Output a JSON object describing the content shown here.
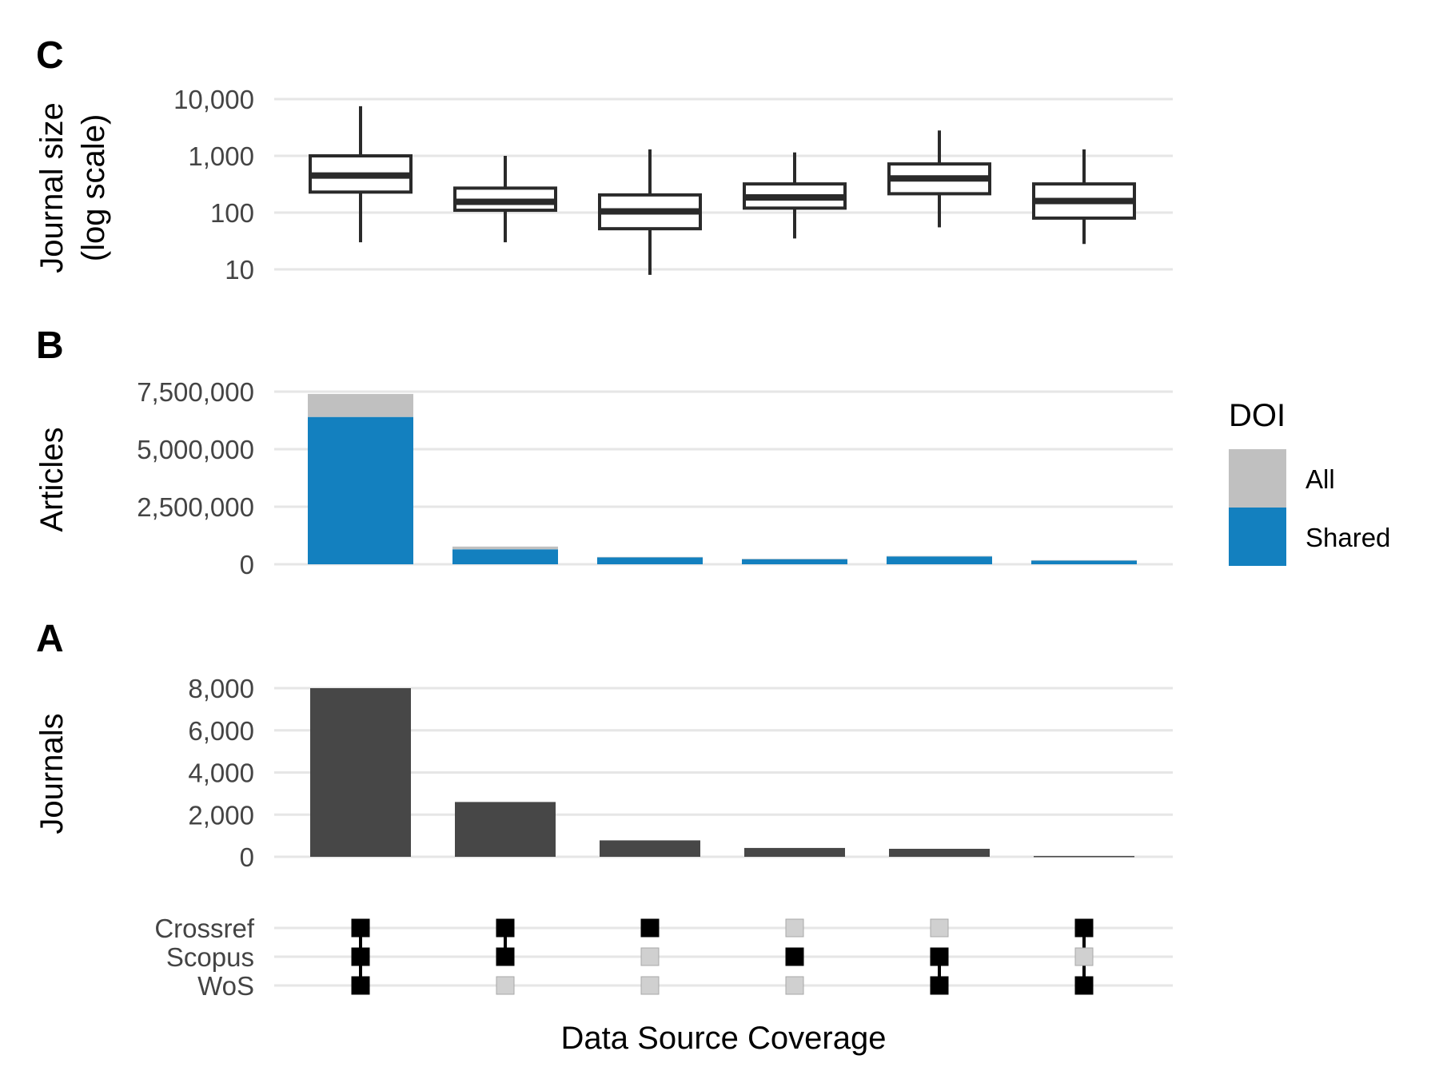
{
  "colors": {
    "all": "#c0c0c0",
    "shared": "#1380bf",
    "journals_bar": "#474747",
    "box_stroke": "#2a2a2a",
    "dot_on": "#000000",
    "dot_off": "#d0d0d0",
    "grid": "#e6e6e6"
  },
  "x_axis_title": "Data Source Coverage",
  "chart_data": [
    {
      "panel": "C",
      "type": "boxplot",
      "ylabel_line1": "Journal size",
      "ylabel_line2": "(log scale)",
      "yscale": "log10",
      "ylim": [
        8,
        10000
      ],
      "ticks": [
        10,
        100,
        1000,
        10000
      ],
      "tick_labels": [
        "10",
        "100",
        "1,000",
        "10,000"
      ],
      "categories": [
        "1",
        "2",
        "3",
        "4",
        "5",
        "6"
      ],
      "boxes": [
        {
          "min": 30,
          "q1": 230,
          "median": 450,
          "q3": 1000,
          "max": 7500
        },
        {
          "min": 30,
          "q1": 110,
          "median": 155,
          "q3": 270,
          "max": 1000
        },
        {
          "min": 8,
          "q1": 52,
          "median": 105,
          "q3": 205,
          "max": 1300
        },
        {
          "min": 35,
          "q1": 120,
          "median": 185,
          "q3": 320,
          "max": 1150
        },
        {
          "min": 55,
          "q1": 215,
          "median": 400,
          "q3": 720,
          "max": 2800
        },
        {
          "min": 28,
          "q1": 80,
          "median": 160,
          "q3": 320,
          "max": 1300
        }
      ]
    },
    {
      "panel": "B",
      "type": "bar",
      "stacked": true,
      "ylabel": "Articles",
      "ylim": [
        0,
        7500000
      ],
      "ticks": [
        0,
        2500000,
        5000000,
        7500000
      ],
      "tick_labels": [
        "0",
        "2,500,000",
        "5,000,000",
        "7,500,000"
      ],
      "categories": [
        "1",
        "2",
        "3",
        "4",
        "5",
        "6"
      ],
      "series": [
        {
          "name": "Shared",
          "values": [
            6400000,
            650000,
            300000,
            220000,
            340000,
            160000
          ]
        },
        {
          "name": "All",
          "values": [
            1000000,
            120000,
            20000,
            20000,
            20000,
            20000
          ]
        }
      ],
      "legend": {
        "title": "DOI",
        "entries": [
          "All",
          "Shared"
        ],
        "placement": "right"
      }
    },
    {
      "panel": "A",
      "type": "bar",
      "ylabel": "Journals",
      "ylim": [
        0,
        8000
      ],
      "ticks": [
        0,
        2000,
        4000,
        6000,
        8000
      ],
      "tick_labels": [
        "0",
        "2,000",
        "4,000",
        "6,000",
        "8,000"
      ],
      "categories": [
        "1",
        "2",
        "3",
        "4",
        "5",
        "6"
      ],
      "values": [
        8000,
        2600,
        780,
        420,
        380,
        40
      ]
    },
    {
      "panel": "matrix",
      "type": "upset-matrix",
      "sets": [
        "Crossref",
        "Scopus",
        "WoS"
      ],
      "membership": [
        [
          true,
          true,
          true
        ],
        [
          true,
          true,
          false
        ],
        [
          true,
          false,
          false
        ],
        [
          false,
          true,
          false
        ],
        [
          false,
          true,
          true
        ],
        [
          true,
          false,
          true
        ]
      ]
    }
  ]
}
